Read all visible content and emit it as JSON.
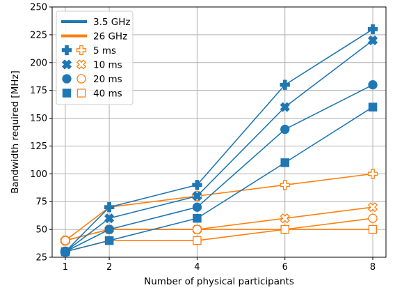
{
  "chart_data": {
    "type": "line",
    "xlabel": "Number of physical participants",
    "ylabel": "Bandwidth required [MHz]",
    "x": [
      1,
      2,
      4,
      6,
      8
    ],
    "xlim": [
      0.7,
      8.3
    ],
    "ylim": [
      25,
      250
    ],
    "yticks": [
      25,
      50,
      75,
      100,
      125,
      150,
      175,
      200,
      225,
      250
    ],
    "grid": true,
    "legend": {
      "placement": "top-left",
      "entries": [
        {
          "label": "3.5 GHz",
          "kind": "line",
          "color": "#1f77b4"
        },
        {
          "label": "26 GHz",
          "kind": "line",
          "color": "#ff7f0e"
        },
        {
          "label": "5 ms",
          "kind": "markers",
          "marker": "plus"
        },
        {
          "label": "10 ms",
          "kind": "markers",
          "marker": "x"
        },
        {
          "label": "20 ms",
          "kind": "markers",
          "marker": "circle"
        },
        {
          "label": "40 ms",
          "kind": "markers",
          "marker": "square"
        }
      ]
    },
    "series": [
      {
        "band": "3.5 GHz",
        "latency": "5 ms",
        "marker": "plus",
        "color": "#1f77b4",
        "filled": true,
        "values": [
          30,
          70,
          90,
          180,
          230
        ]
      },
      {
        "band": "3.5 GHz",
        "latency": "10 ms",
        "marker": "x",
        "color": "#1f77b4",
        "filled": true,
        "values": [
          30,
          60,
          80,
          160,
          220
        ]
      },
      {
        "band": "3.5 GHz",
        "latency": "20 ms",
        "marker": "circle",
        "color": "#1f77b4",
        "filled": true,
        "values": [
          30,
          50,
          70,
          140,
          180
        ]
      },
      {
        "band": "3.5 GHz",
        "latency": "40 ms",
        "marker": "square",
        "color": "#1f77b4",
        "filled": true,
        "values": [
          30,
          40,
          60,
          110,
          160
        ]
      },
      {
        "band": "26 GHz",
        "latency": "5 ms",
        "marker": "plus",
        "color": "#ff7f0e",
        "filled": false,
        "values": [
          40,
          70,
          80,
          90,
          100
        ]
      },
      {
        "band": "26 GHz",
        "latency": "10 ms",
        "marker": "x",
        "color": "#ff7f0e",
        "filled": false,
        "values": [
          40,
          50,
          50,
          60,
          70
        ]
      },
      {
        "band": "26 GHz",
        "latency": "20 ms",
        "marker": "circle",
        "color": "#ff7f0e",
        "filled": false,
        "values": [
          40,
          50,
          50,
          50,
          60
        ]
      },
      {
        "band": "26 GHz",
        "latency": "40 ms",
        "marker": "square",
        "color": "#ff7f0e",
        "filled": false,
        "values": [
          30,
          40,
          40,
          50,
          50
        ]
      }
    ]
  }
}
